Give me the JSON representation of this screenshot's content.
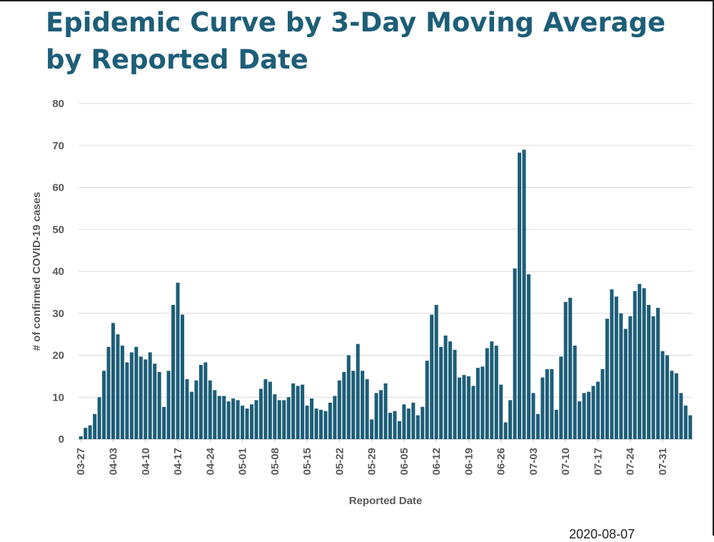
{
  "header": {
    "title": "Epidemic Curve by 3-Day Moving Average by Reported Date"
  },
  "footer": {
    "date_stamp": "2020-08-07"
  },
  "colors": {
    "bar": "#1d5e78",
    "title": "#1d5e78",
    "grid": "#d9d9d9",
    "axis_text": "#595959"
  },
  "chart_data": {
    "type": "bar",
    "title": "Epidemic Curve by 3-Day Moving Average by Reported Date",
    "xlabel": "Reported Date",
    "ylabel": "# of confirmed COVID-19 cases",
    "ylim": [
      0,
      80
    ],
    "yticks": [
      0,
      10,
      20,
      30,
      40,
      50,
      60,
      70,
      80
    ],
    "grid": true,
    "legend": "none",
    "x_start": "03-27",
    "x_tick_labels": [
      "03-27",
      "04-03",
      "04-10",
      "04-17",
      "04-24",
      "05-01",
      "05-08",
      "05-15",
      "05-22",
      "05-29",
      "06-05",
      "06-12",
      "06-19",
      "06-26",
      "07-03",
      "07-10",
      "07-17",
      "07-24",
      "07-31"
    ],
    "values": [
      0.7,
      2.7,
      3.3,
      6,
      10,
      16.3,
      22,
      27.7,
      25,
      22.3,
      18.3,
      20.7,
      22,
      19.7,
      19,
      20.7,
      18,
      16,
      7.7,
      16.3,
      32,
      37.3,
      29.7,
      14.3,
      11.3,
      14,
      17.7,
      18.3,
      14,
      11.7,
      10.3,
      10.3,
      9,
      9.7,
      9.3,
      8,
      7.3,
      8.3,
      9.3,
      12,
      14.3,
      13.7,
      10.7,
      9.3,
      9.3,
      10,
      13.3,
      12.7,
      13,
      8,
      9.7,
      7.3,
      7,
      6.7,
      8.7,
      10.3,
      14,
      16,
      20,
      16.3,
      22.7,
      16.3,
      14.3,
      4.7,
      11,
      11.7,
      13.3,
      6.3,
      6.7,
      4.3,
      8.3,
      7.3,
      8.7,
      5.7,
      7.7,
      18.7,
      29.7,
      32,
      22,
      24.7,
      23.3,
      21.3,
      14.7,
      15.3,
      15,
      12.7,
      17,
      17.3,
      21.7,
      23.3,
      22.3,
      13,
      4,
      9.3,
      40.7,
      68.3,
      69,
      39.3,
      11,
      6,
      14.7,
      16.7,
      16.7,
      7,
      19.7,
      32.7,
      33.7,
      22.3,
      9,
      11,
      11.3,
      12.7,
      13.7,
      16.7,
      28.7,
      35.7,
      34,
      30,
      26.3,
      29.3,
      35.3,
      37,
      36,
      32,
      29.3,
      31.3,
      21,
      20,
      16.3,
      15.7,
      11,
      8,
      5.7
    ]
  }
}
